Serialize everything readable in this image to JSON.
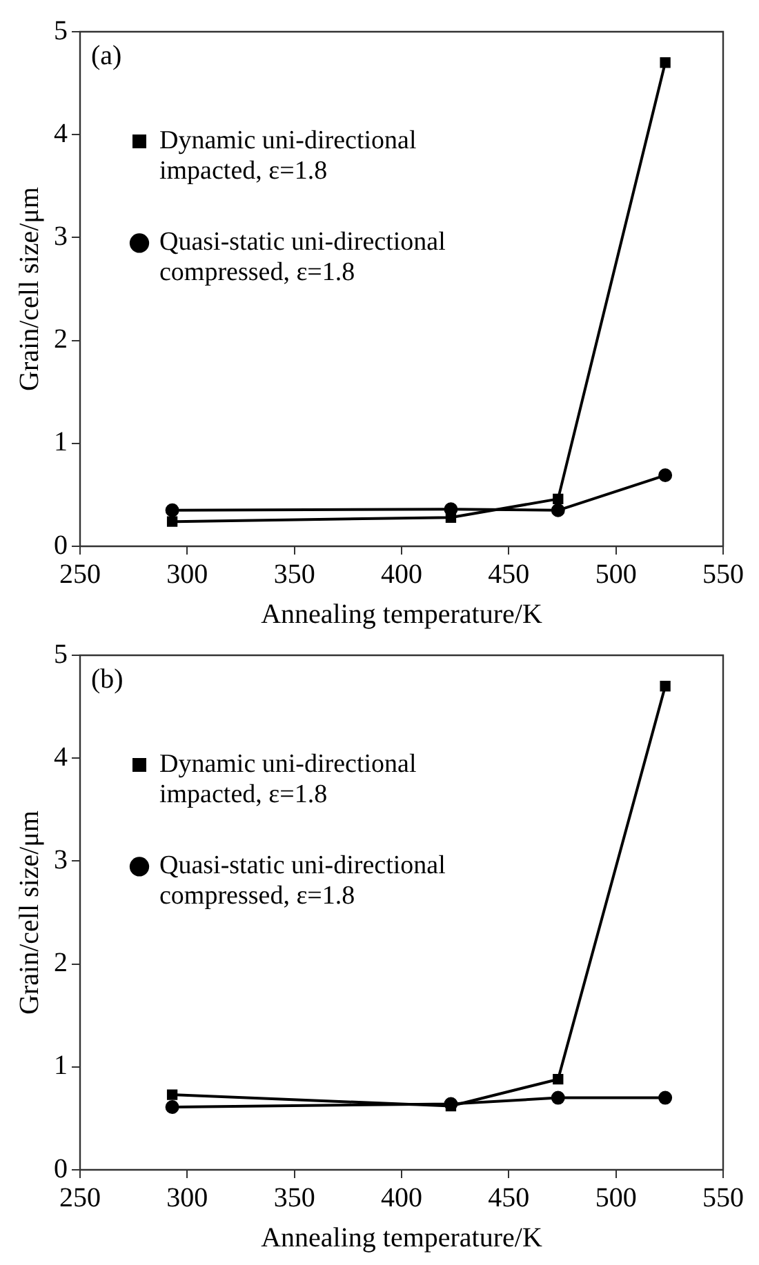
{
  "chart_data": [
    {
      "type": "line",
      "annotations": [
        "(a)"
      ],
      "xlabel": "Annealing temperature/K",
      "ylabel": "Grain/cell size/μm",
      "x": [
        293,
        423,
        473,
        523
      ],
      "xlim": [
        250,
        550
      ],
      "xticks": [
        250,
        300,
        350,
        400,
        450,
        500,
        550
      ],
      "ylim": [
        0,
        5
      ],
      "yticks": [
        0,
        1,
        2,
        3,
        4,
        5
      ],
      "legend": "top left",
      "grid": false,
      "line_style": "solid",
      "series": [
        {
          "name": "Dynamic uni-directional impacted, ε=1.8",
          "color": "#000000",
          "marker": "square",
          "values": [
            0.24,
            0.28,
            0.46,
            4.7
          ]
        },
        {
          "name": "Quasi-static uni-directional compressed, ε=1.8",
          "color": "#000000",
          "marker": "circle",
          "values": [
            0.35,
            0.36,
            0.35,
            0.69
          ]
        }
      ]
    },
    {
      "type": "line",
      "annotations": [
        "(b)"
      ],
      "xlabel": "Annealing temperature/K",
      "ylabel": "Grain/cell size/μm",
      "x": [
        293,
        423,
        473,
        523
      ],
      "xlim": [
        250,
        550
      ],
      "xticks": [
        250,
        300,
        350,
        400,
        450,
        500,
        550
      ],
      "ylim": [
        0,
        5
      ],
      "yticks": [
        0,
        1,
        2,
        3,
        4,
        5
      ],
      "legend": "top left",
      "grid": false,
      "line_style": "solid",
      "series": [
        {
          "name": "Dynamic uni-directional impacted, ε=1.8",
          "color": "#000000",
          "marker": "square",
          "values": [
            0.73,
            0.62,
            0.88,
            4.7
          ]
        },
        {
          "name": "Quasi-static uni-directional compressed, ε=1.8",
          "color": "#000000",
          "marker": "circle",
          "values": [
            0.61,
            0.64,
            0.7,
            0.7
          ]
        }
      ]
    }
  ]
}
